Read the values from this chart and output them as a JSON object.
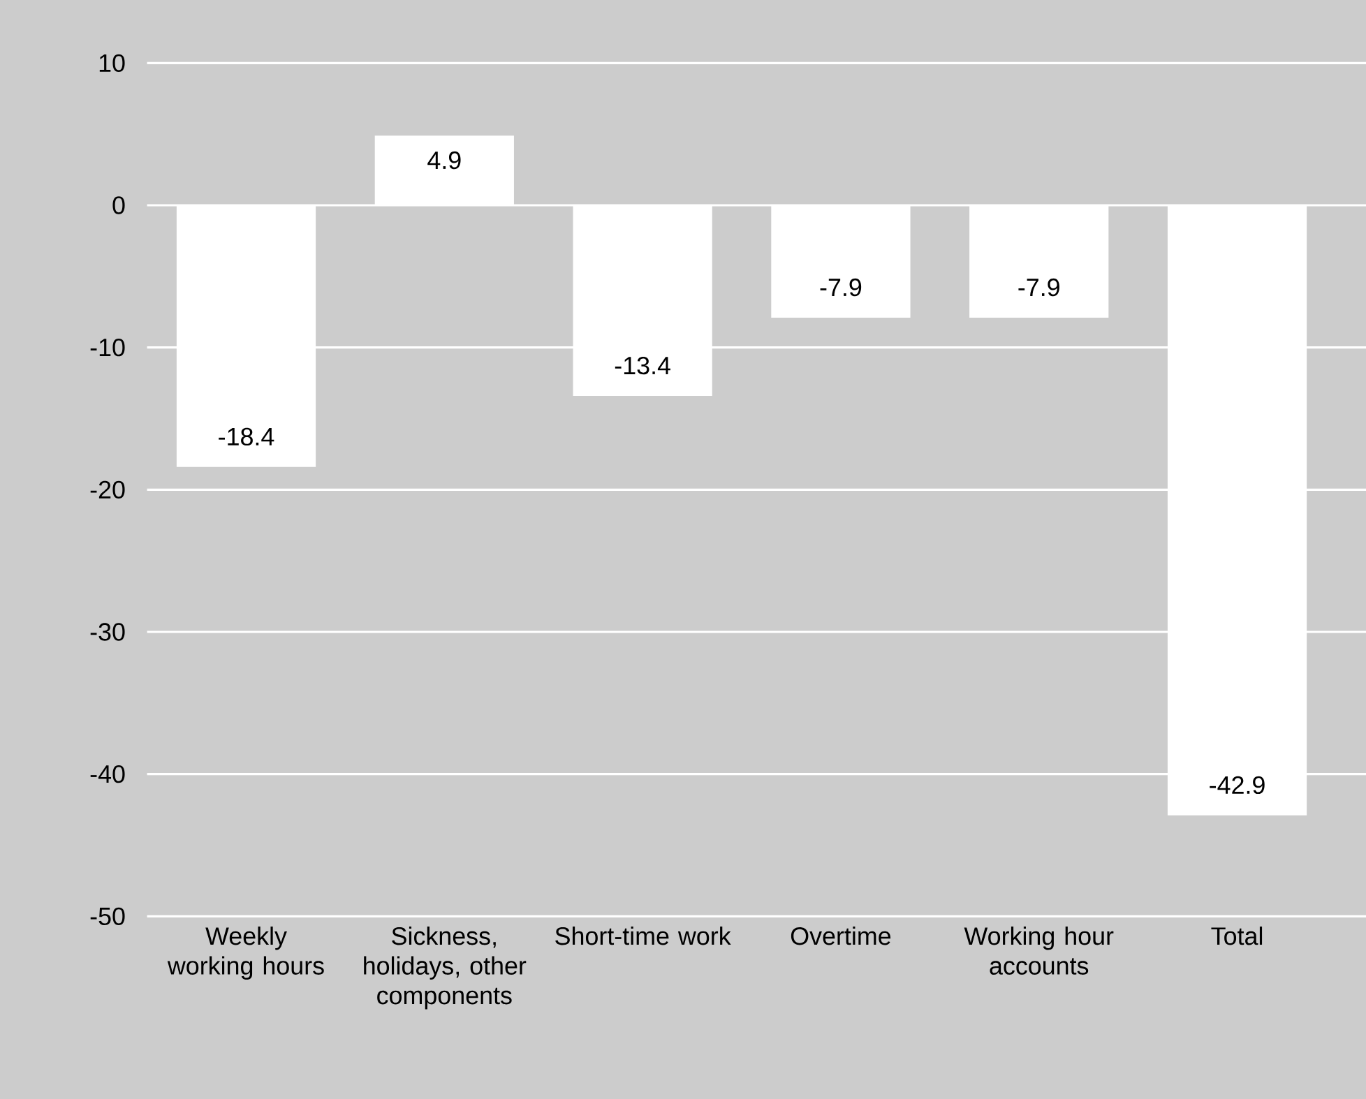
{
  "chart_data": {
    "type": "bar",
    "categories": [
      "Weekly working hours",
      "Sickness, holidays, other components",
      "Short-time work",
      "Overtime",
      "Working hour accounts",
      "Total"
    ],
    "values": [
      -18.4,
      4.9,
      -13.4,
      -7.9,
      -7.9,
      -42.9
    ],
    "color": "#ffffff",
    "ylim": [
      -50,
      10
    ],
    "yticks": [
      10,
      0,
      -10,
      -20,
      -30,
      -40,
      -50
    ],
    "grid": "y",
    "data_labels": true
  }
}
